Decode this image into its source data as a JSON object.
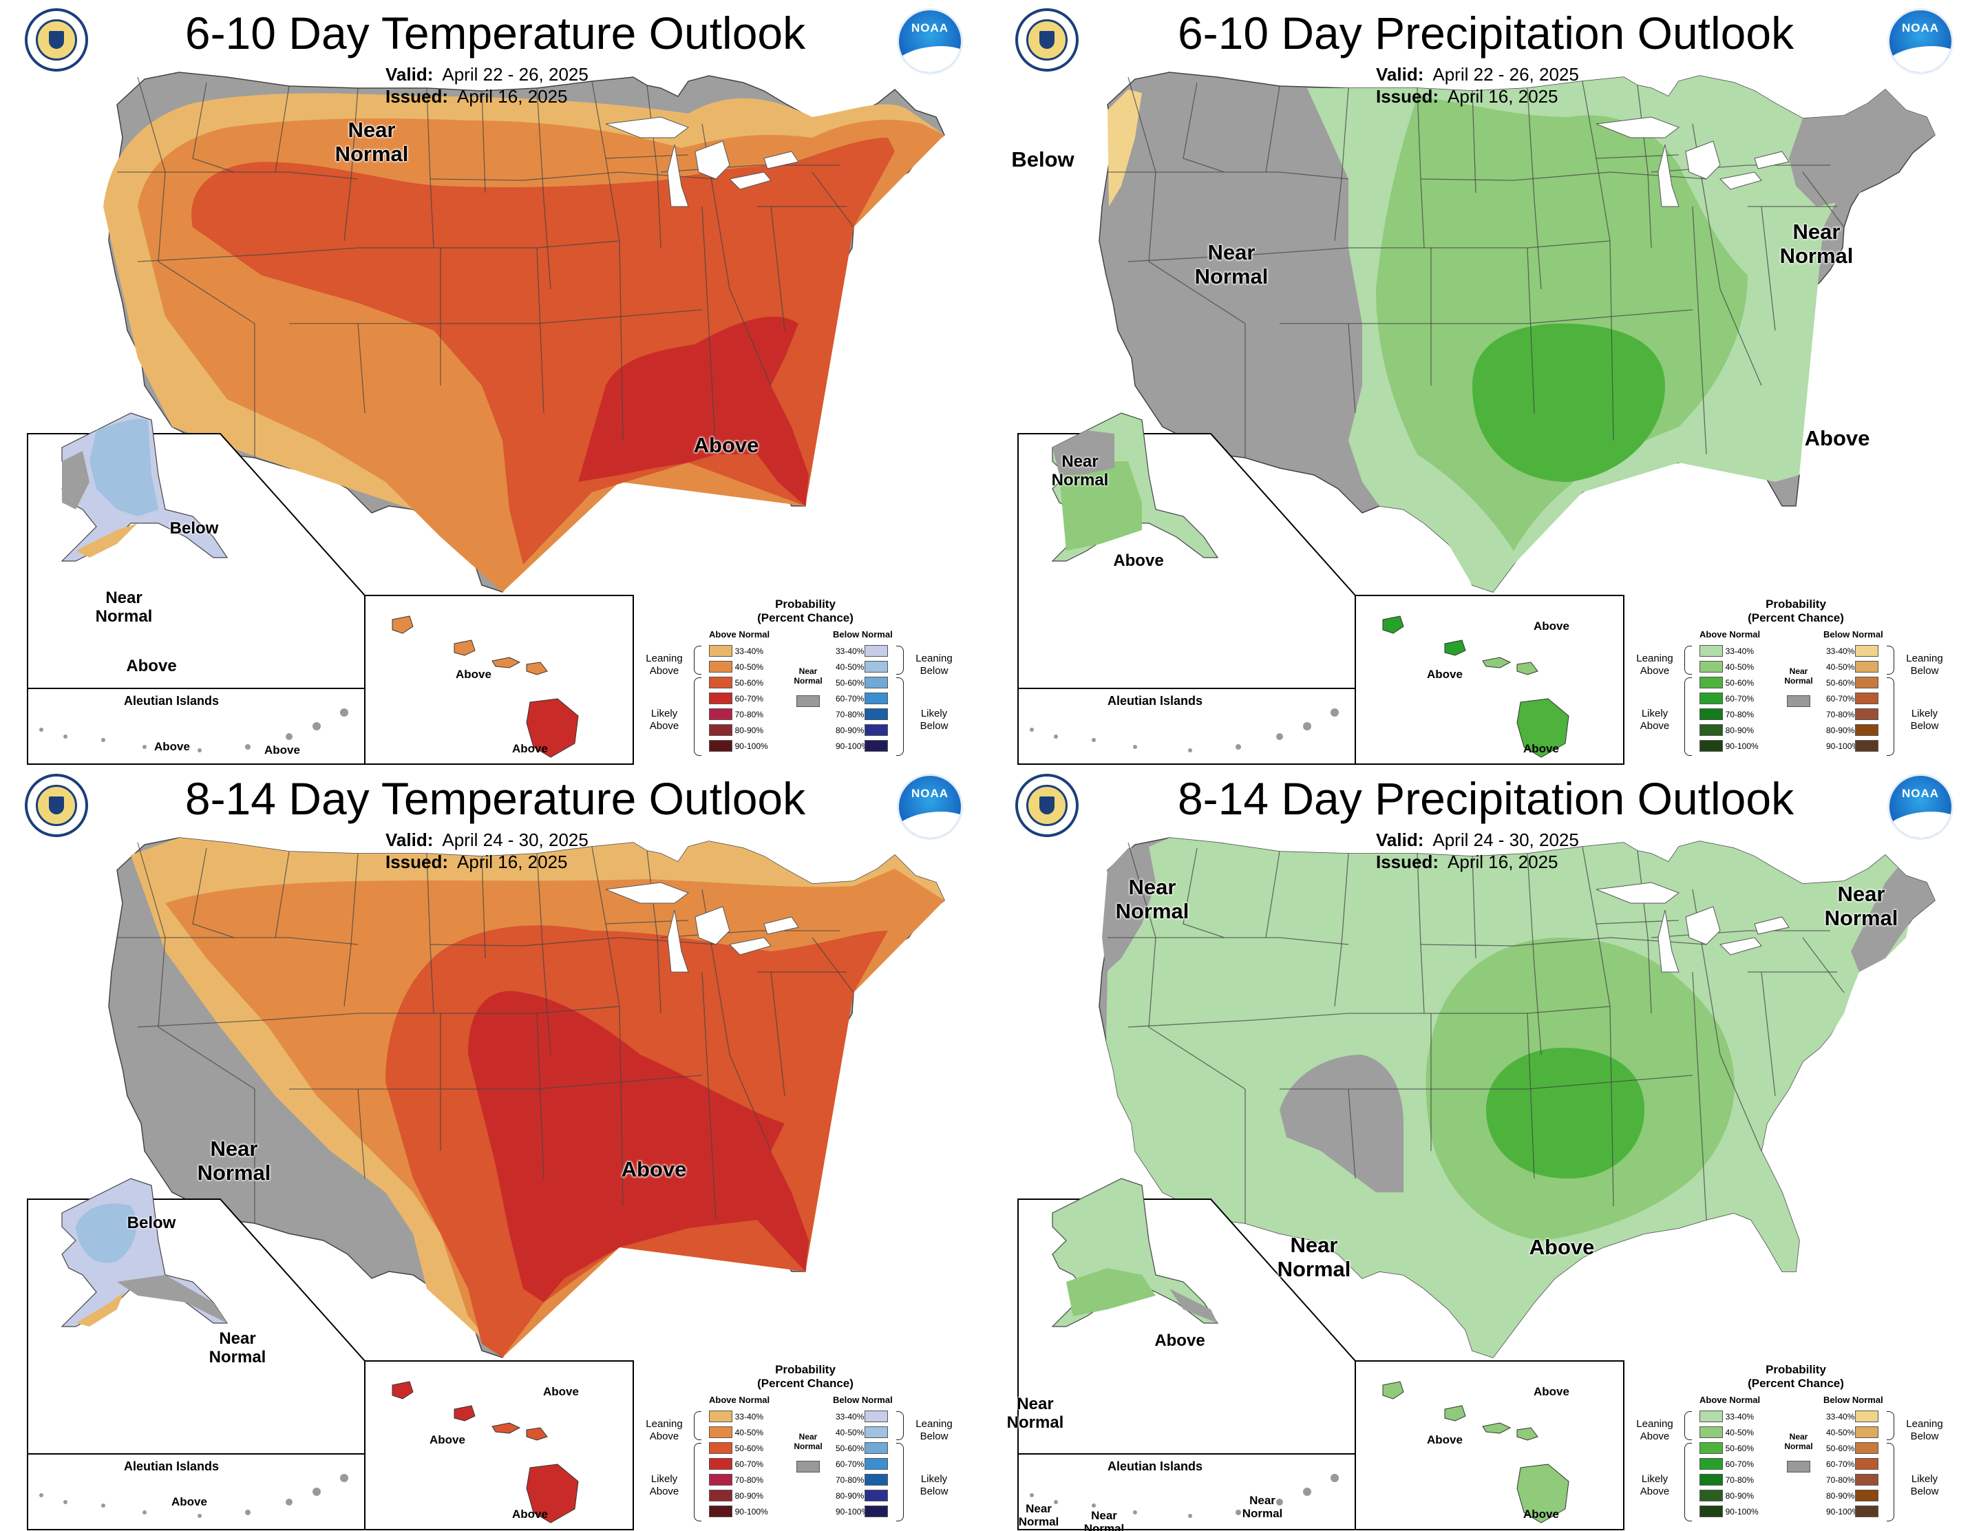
{
  "colors": {
    "near_normal": "#9e9e9e",
    "above_temp": [
      "#eab76a",
      "#e38b45",
      "#d9562e",
      "#c92c28",
      "#b22248",
      "#8a2a2f",
      "#5a1518"
    ],
    "below_temp": [
      "#c6cde8",
      "#a0c1e0",
      "#6fa9d8",
      "#3a8fd3",
      "#1a5fa8",
      "#2c2f8f",
      "#1f1b5b"
    ],
    "above_precip": [
      "#b2dcaa",
      "#8fcb7a",
      "#4db33d",
      "#27a12a",
      "#147a1b",
      "#2a5f1f",
      "#1f4214"
    ],
    "below_precip": [
      "#f2d38c",
      "#deaa5e",
      "#c77a3e",
      "#b85b2e",
      "#9a5036",
      "#8a4710",
      "#5b3a25"
    ],
    "water": "#ffffff",
    "border": "#444444"
  },
  "panels": [
    {
      "title": "6-10 Day Temperature Outlook",
      "valid_label": "Valid:",
      "valid": "April 22 - 26, 2025",
      "issued_label": "Issued:",
      "issued": "April 16, 2025",
      "labels": {
        "conus": [
          "Near Normal",
          "Above"
        ],
        "alaska": [
          "Below",
          "Near Normal",
          "Above"
        ],
        "aleutian_title": "Aleutian Islands",
        "aleutian": [
          "Above",
          "Above"
        ],
        "hawaii": [
          "Above",
          "Above"
        ]
      }
    },
    {
      "title": "6-10 Day Precipitation Outlook",
      "valid_label": "Valid:",
      "valid": "April 22 - 26, 2025",
      "issued_label": "Issued:",
      "issued": "April 16, 2025",
      "labels": {
        "conus": [
          "Below",
          "Near Normal",
          "Near Normal",
          "Above"
        ],
        "alaska": [
          "Near Normal",
          "Above"
        ],
        "aleutian_title": "Aleutian Islands",
        "hawaii": [
          "Above",
          "Above",
          "Above"
        ]
      }
    },
    {
      "title": "8-14 Day Temperature Outlook",
      "valid_label": "Valid:",
      "valid": "April 24 - 30, 2025",
      "issued_label": "Issued:",
      "issued": "April 16, 2025",
      "labels": {
        "conus": [
          "Near Normal",
          "Above"
        ],
        "alaska": [
          "Below",
          "Near Normal"
        ],
        "aleutian_title": "Aleutian Islands",
        "aleutian": [
          "Above"
        ],
        "hawaii": [
          "Above",
          "Above",
          "Above"
        ]
      }
    },
    {
      "title": "8-14 Day Precipitation Outlook",
      "valid_label": "Valid:",
      "valid": "April 24 - 30, 2025",
      "issued_label": "Issued:",
      "issued": "April 16, 2025",
      "labels": {
        "conus": [
          "Near Normal",
          "Near Normal",
          "Near Normal",
          "Above"
        ],
        "alaska": [
          "Above",
          "Near Normal"
        ],
        "aleutian_title": "Aleutian Islands",
        "aleutian": [
          "Near Normal",
          "Near Normal",
          "Near Normal"
        ],
        "hawaii": [
          "Above",
          "Above",
          "Above"
        ]
      }
    }
  ],
  "legend": {
    "title": "Probability (Percent Chance)",
    "above_normal": "Above Normal",
    "below_normal": "Below Normal",
    "leaning_above": "Leaning Above",
    "likely_above": "Likely Above",
    "leaning_below": "Leaning Below",
    "likely_below": "Likely Below",
    "near_normal": "Near Normal",
    "ranges": [
      "33-40%",
      "40-50%",
      "50-60%",
      "60-70%",
      "70-80%",
      "80-90%",
      "90-100%"
    ]
  }
}
